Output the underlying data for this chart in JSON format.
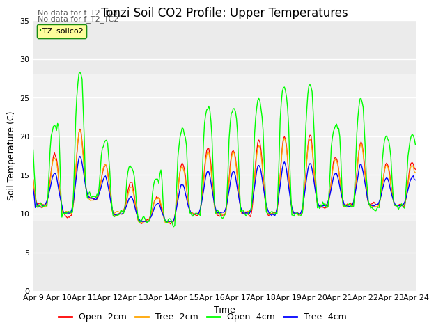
{
  "title": "Tonzi Soil CO2 Profile: Upper Temperatures",
  "ylabel": "Soil Temperature (C)",
  "xlabel": "Time",
  "annotation1": "No data for f_T2_TC1",
  "annotation2": "No data for f_T2_TC2",
  "legend_label": "TZ_soilco2",
  "series_labels": [
    "Open -2cm",
    "Tree -2cm",
    "Open -4cm",
    "Tree -4cm"
  ],
  "series_colors": [
    "red",
    "orange",
    "lime",
    "blue"
  ],
  "ylim": [
    0,
    35
  ],
  "xtick_labels": [
    "Apr 9",
    "Apr 10",
    "Apr 11",
    "Apr 12",
    "Apr 13",
    "Apr 14",
    "Apr 15",
    "Apr 16",
    "Apr 17",
    "Apr 18",
    "Apr 19",
    "Apr 20",
    "Apr 21",
    "Apr 22",
    "Apr 23",
    "Apr 24"
  ],
  "bg_color": "#ffffff",
  "plot_bg": "#ebebeb",
  "title_fontsize": 12,
  "axis_fontsize": 9,
  "tick_fontsize": 8
}
